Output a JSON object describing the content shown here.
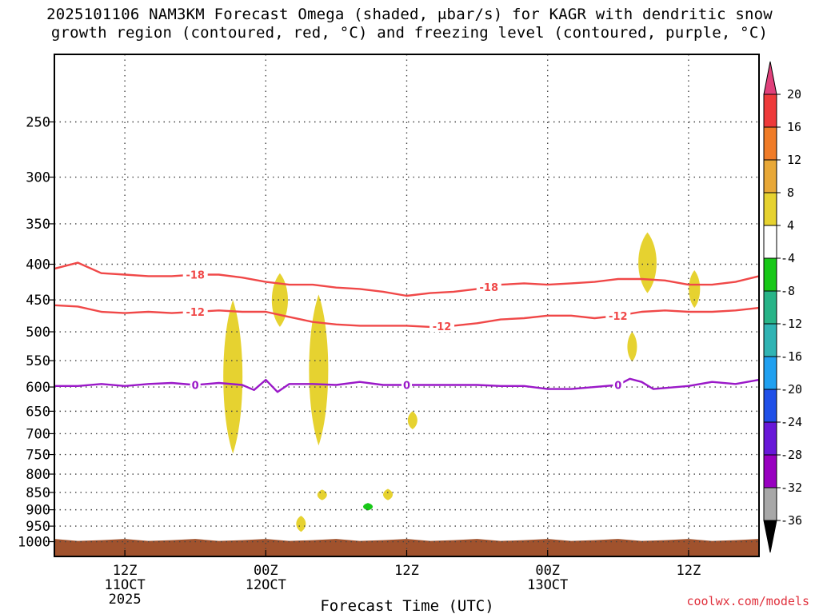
{
  "title": {
    "line1": "2025101106 NAM3KM Forecast Omega (shaded, μbar/s) for KAGR with dendritic snow",
    "line2": "growth region (contoured, red, °C) and freezing level (contoured, purple, °C)"
  },
  "chart_data": {
    "type": "time-height",
    "xlabel": "Forecast Time (UTC)",
    "ylabel": "",
    "y_scale": "log-pressure",
    "y_axis_reversed": true,
    "ylim_hpa": [
      1050,
      200
    ],
    "xlim_hours": [
      0,
      60
    ],
    "pressure_levels": [
      250,
      300,
      350,
      400,
      450,
      500,
      550,
      600,
      650,
      700,
      750,
      800,
      850,
      900,
      950,
      1000
    ],
    "y_tick_labels": [
      "250",
      "300",
      "350",
      "400",
      "450",
      "500",
      "550",
      "600",
      "650",
      "700",
      "750",
      "800",
      "850",
      "900",
      "950",
      "1000"
    ],
    "x_ticks": [
      {
        "hour": 6,
        "line1": "12Z",
        "line2": "11OCT",
        "line3": "2025"
      },
      {
        "hour": 18,
        "line1": "00Z",
        "line2": "12OCT",
        "line3": ""
      },
      {
        "hour": 30,
        "line1": "12Z",
        "line2": "",
        "line3": ""
      },
      {
        "hour": 42,
        "line1": "00Z",
        "line2": "13OCT",
        "line3": ""
      },
      {
        "hour": 54,
        "line1": "12Z",
        "line2": "",
        "line3": ""
      }
    ],
    "colorbar": {
      "labels": [
        "20",
        "16",
        "12",
        "8",
        "4",
        "-4",
        "-8",
        "-12",
        "-16",
        "-20",
        "-24",
        "-28",
        "-32",
        "-36"
      ],
      "colors": [
        "#e0407a",
        "#ee3a3a",
        "#f07c28",
        "#e8a838",
        "#e6d230",
        "#ffffff",
        "#18c818",
        "#28b488",
        "#30b4b4",
        "#20a0f0",
        "#2050e8",
        "#6818d8",
        "#9800c0",
        "#a8a8a8",
        "#000000"
      ]
    },
    "series": [
      {
        "name": "-18 °C isotherm",
        "color": "#f04848",
        "label": "-18",
        "x": [
          0,
          2,
          4,
          6,
          8,
          10,
          12,
          14,
          16,
          18,
          20,
          22,
          24,
          26,
          28,
          30,
          32,
          34,
          36,
          38,
          40,
          42,
          44,
          46,
          48,
          50,
          52,
          54,
          56,
          58,
          60
        ],
        "y": [
          406,
          398,
          412,
          414,
          416,
          416,
          414,
          414,
          418,
          424,
          428,
          428,
          432,
          434,
          438,
          444,
          440,
          438,
          434,
          428,
          426,
          428,
          426,
          424,
          420,
          420,
          422,
          428,
          428,
          424,
          416
        ]
      },
      {
        "name": "-12 °C isotherm",
        "color": "#f04848",
        "label": "-12",
        "x": [
          0,
          2,
          4,
          6,
          8,
          10,
          12,
          14,
          16,
          18,
          20,
          22,
          24,
          26,
          28,
          30,
          32,
          34,
          36,
          38,
          40,
          42,
          44,
          46,
          48,
          50,
          52,
          54,
          56,
          58,
          60
        ],
        "y": [
          458,
          460,
          468,
          470,
          468,
          470,
          468,
          466,
          468,
          468,
          476,
          484,
          488,
          490,
          490,
          490,
          492,
          490,
          486,
          480,
          478,
          474,
          474,
          478,
          474,
          468,
          466,
          468,
          468,
          466,
          462
        ]
      },
      {
        "name": "0 °C freezing level",
        "color": "#9a18c8",
        "label": "0",
        "x": [
          0,
          2,
          4,
          6,
          8,
          10,
          12,
          14,
          16,
          17,
          18,
          19,
          20,
          21,
          22,
          24,
          26,
          28,
          30,
          32,
          34,
          36,
          38,
          40,
          42,
          44,
          46,
          48,
          49,
          50,
          51,
          52,
          54,
          56,
          58,
          60
        ],
        "y": [
          598,
          598,
          594,
          598,
          594,
          592,
          596,
          592,
          596,
          606,
          586,
          610,
          594,
          594,
          594,
          596,
          590,
          596,
          596,
          596,
          596,
          596,
          598,
          598,
          604,
          604,
          600,
          596,
          584,
          590,
          604,
          602,
          598,
          590,
          594,
          586
        ]
      }
    ],
    "shaded_regions": [
      {
        "value_range": "4 to 8",
        "color": "#e6d230",
        "hour": 15.2,
        "p_top": 450,
        "p_bottom": 748
      },
      {
        "value_range": "4 to 8",
        "color": "#e6d230",
        "hour": 19.2,
        "p_top": 412,
        "p_bottom": 492
      },
      {
        "value_range": "4 to 8",
        "color": "#e6d230",
        "hour": 22.5,
        "p_top": 442,
        "p_bottom": 728
      },
      {
        "value_range": "4 to 8",
        "color": "#e6d230",
        "hour": 30.5,
        "p_top": 650,
        "p_bottom": 690
      },
      {
        "value_range": "4 to 8",
        "color": "#e6d230",
        "hour": 50.5,
        "p_top": 360,
        "p_bottom": 440
      },
      {
        "value_range": "4 to 8",
        "color": "#e6d230",
        "hour": 49.2,
        "p_top": 500,
        "p_bottom": 552
      },
      {
        "value_range": "4 to 8",
        "color": "#e6d230",
        "hour": 54.5,
        "p_top": 408,
        "p_bottom": 462
      },
      {
        "value_range": "4 to 8",
        "color": "#e6d230",
        "hour": 21.0,
        "p_top": 918,
        "p_bottom": 968
      },
      {
        "value_range": "4 to 8",
        "color": "#e6d230",
        "hour": 22.8,
        "p_top": 842,
        "p_bottom": 872
      },
      {
        "value_range": "4 to 8",
        "color": "#e6d230",
        "hour": 28.4,
        "p_top": 840,
        "p_bottom": 872
      },
      {
        "value_range": "-4 to -8",
        "color": "#18c818",
        "hour": 26.7,
        "p_top": 880,
        "p_bottom": 902
      }
    ],
    "terrain": {
      "color": "#a0522d",
      "below_hpa": 995
    }
  },
  "credit": "coolwx.com/models"
}
